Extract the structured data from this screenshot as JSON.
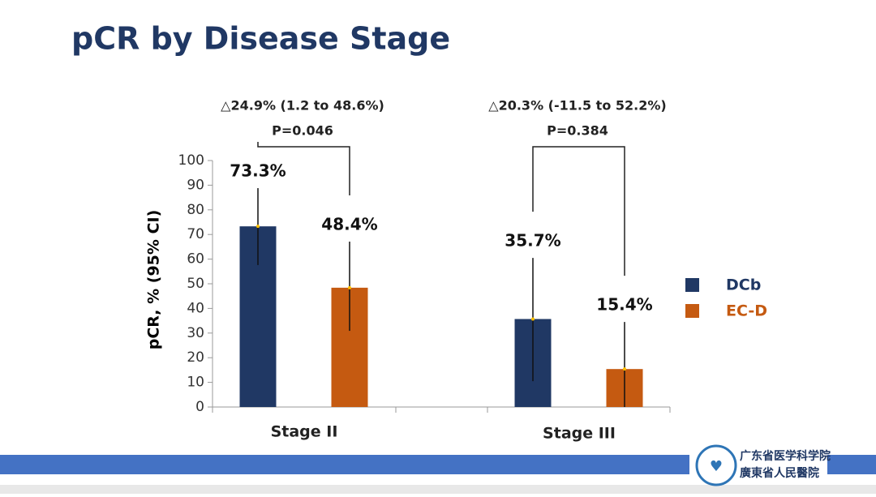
{
  "chart_data": {
    "type": "bar",
    "title": "pCR by Disease Stage",
    "y_label": "pCR, % (95% CI)",
    "categories": [
      "Stage II",
      "Stage III"
    ],
    "series": [
      {
        "name": "DCb",
        "color": "#203864",
        "values": [
          73.3,
          35.7
        ],
        "value_labels": [
          "73.3%",
          "35.7%"
        ],
        "ci_low": [
          57.6,
          10.5
        ],
        "ci_high": [
          88.8,
          60.5
        ]
      },
      {
        "name": "EC-D",
        "color": "#c55a11",
        "values": [
          48.4,
          15.4
        ],
        "value_labels": [
          "48.4%",
          "15.4%"
        ],
        "ci_low": [
          30.9,
          0
        ],
        "ci_high": [
          67.1,
          34.5
        ]
      }
    ],
    "annotations": [
      {
        "difference": "△24.9% (1.2 to 48.6%)",
        "p": "P=0.046"
      },
      {
        "difference": "△20.3% (-11.5 to 52.2%)",
        "p": "P=0.384"
      }
    ],
    "ylim": [
      0,
      100
    ],
    "yticks": [
      0,
      10,
      20,
      30,
      40,
      50,
      60,
      70,
      80,
      90,
      100
    ],
    "legend": "right"
  },
  "footer": {
    "logo_line1": "广东省医学科学院",
    "logo_line2": "廣東省人民醫院"
  }
}
